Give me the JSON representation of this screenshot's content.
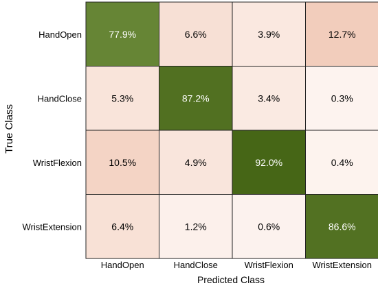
{
  "chart_data": {
    "type": "heatmap",
    "x_categories": [
      "HandOpen",
      "HandClose",
      "WristFlexion",
      "WristExtension"
    ],
    "y_categories": [
      "HandOpen",
      "HandClose",
      "WristFlexion",
      "WristExtension"
    ],
    "values": [
      [
        77.9,
        6.6,
        3.9,
        12.7
      ],
      [
        5.3,
        87.2,
        3.4,
        0.3
      ],
      [
        10.5,
        4.9,
        92.0,
        0.4
      ],
      [
        6.4,
        1.2,
        0.6,
        86.6
      ]
    ],
    "value_labels": [
      [
        "77.9%",
        "6.6%",
        "3.9%",
        "12.7%"
      ],
      [
        "5.3%",
        "87.2%",
        "3.4%",
        "0.3%"
      ],
      [
        "10.5%",
        "4.9%",
        "92.0%",
        "0.4%"
      ],
      [
        "6.4%",
        "1.2%",
        "0.6%",
        "86.6%"
      ]
    ],
    "xlabel": "Predicted Class",
    "ylabel": "True Class",
    "diagonal_color": "#3f5f10",
    "offdiagonal_color": "#e8a88a",
    "grid": true
  }
}
